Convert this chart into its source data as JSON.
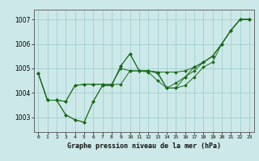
{
  "title": "Graphe pression niveau de la mer (hPa)",
  "background_color": "#cce8e8",
  "grid_color": "#99cccc",
  "line_color": "#1a6b1a",
  "fig_background": "#cce8e8",
  "xlim": [
    -0.5,
    23.5
  ],
  "ylim": [
    1002.4,
    1007.4
  ],
  "yticks": [
    1003,
    1004,
    1005,
    1006,
    1007
  ],
  "xticks": [
    0,
    1,
    2,
    3,
    4,
    5,
    6,
    7,
    8,
    9,
    10,
    11,
    12,
    13,
    14,
    15,
    16,
    17,
    18,
    19,
    20,
    21,
    22,
    23
  ],
  "series": [
    [
      1004.8,
      1003.7,
      1003.7,
      1003.1,
      1002.9,
      1002.8,
      1003.65,
      1004.3,
      1004.3,
      1005.1,
      1005.6,
      1004.9,
      1004.9,
      1004.85,
      1004.2,
      1004.2,
      1004.3,
      1004.65,
      1005.05,
      1005.25,
      1006.0,
      1006.55,
      1007.0,
      1007.0
    ],
    [
      1004.8,
      1003.7,
      1003.7,
      1003.1,
      1002.9,
      1002.8,
      1003.65,
      1004.3,
      1004.3,
      1005.1,
      1005.6,
      1004.9,
      1004.85,
      1004.5,
      1004.2,
      1004.4,
      1004.65,
      1004.9,
      1005.25,
      1005.5,
      1006.0,
      1006.55,
      1007.0,
      1007.0
    ],
    [
      1004.8,
      1003.7,
      1003.7,
      1003.65,
      1004.3,
      1004.35,
      1004.35,
      1004.35,
      1004.35,
      1004.35,
      1004.9,
      1004.9,
      1004.9,
      1004.85,
      1004.85,
      1004.85,
      1004.9,
      1005.05,
      1005.25,
      1005.5,
      1006.0,
      1006.55,
      1007.0,
      1007.0
    ],
    [
      1004.8,
      1003.7,
      1003.7,
      1003.65,
      1004.3,
      1004.35,
      1004.35,
      1004.35,
      1004.35,
      1005.0,
      1004.9,
      1004.9,
      1004.9,
      1004.8,
      1004.2,
      1004.2,
      1004.65,
      1005.05,
      1005.25,
      1005.5,
      1006.0,
      1006.55,
      1007.0,
      1007.0
    ]
  ]
}
